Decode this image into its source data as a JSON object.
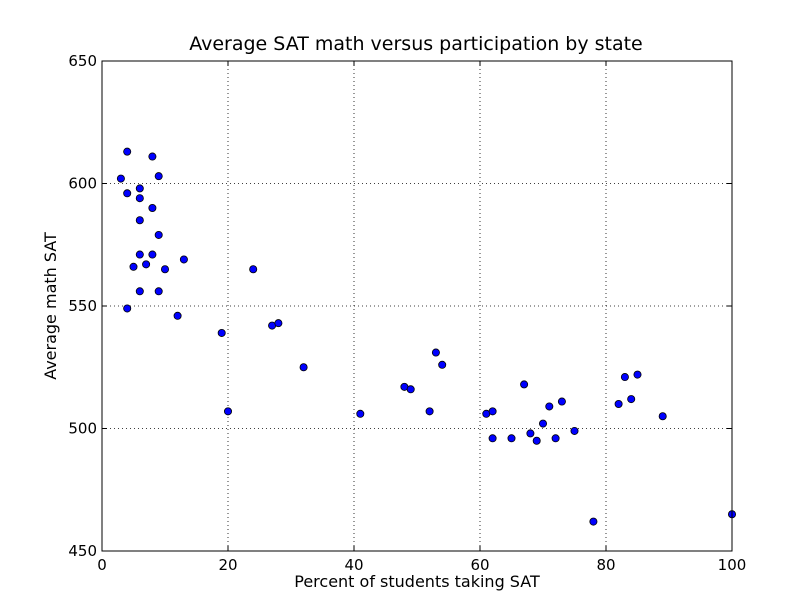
{
  "chart_data": {
    "type": "scatter",
    "title": "Average SAT math versus participation by state",
    "xlabel": "Percent of students taking SAT",
    "ylabel": "Average math SAT",
    "xlim": [
      0,
      100
    ],
    "ylim": [
      450,
      650
    ],
    "xticks": [
      0,
      20,
      40,
      60,
      80,
      100
    ],
    "yticks": [
      450,
      500,
      550,
      600,
      650
    ],
    "grid": true,
    "marker_color": "#0000ff",
    "series": [
      {
        "points": [
          {
            "x": 3,
            "y": 602
          },
          {
            "x": 4,
            "y": 613
          },
          {
            "x": 4,
            "y": 596
          },
          {
            "x": 4,
            "y": 549
          },
          {
            "x": 5,
            "y": 566
          },
          {
            "x": 6,
            "y": 598
          },
          {
            "x": 6,
            "y": 594
          },
          {
            "x": 6,
            "y": 585
          },
          {
            "x": 6,
            "y": 571
          },
          {
            "x": 6,
            "y": 556
          },
          {
            "x": 7,
            "y": 567
          },
          {
            "x": 8,
            "y": 611
          },
          {
            "x": 8,
            "y": 590
          },
          {
            "x": 8,
            "y": 571
          },
          {
            "x": 9,
            "y": 603
          },
          {
            "x": 9,
            "y": 579
          },
          {
            "x": 9,
            "y": 556
          },
          {
            "x": 10,
            "y": 565
          },
          {
            "x": 12,
            "y": 546
          },
          {
            "x": 13,
            "y": 569
          },
          {
            "x": 19,
            "y": 539
          },
          {
            "x": 20,
            "y": 507
          },
          {
            "x": 24,
            "y": 565
          },
          {
            "x": 27,
            "y": 542
          },
          {
            "x": 28,
            "y": 543
          },
          {
            "x": 32,
            "y": 525
          },
          {
            "x": 41,
            "y": 506
          },
          {
            "x": 48,
            "y": 517
          },
          {
            "x": 49,
            "y": 516
          },
          {
            "x": 52,
            "y": 507
          },
          {
            "x": 53,
            "y": 531
          },
          {
            "x": 54,
            "y": 526
          },
          {
            "x": 61,
            "y": 506
          },
          {
            "x": 62,
            "y": 507
          },
          {
            "x": 62,
            "y": 496
          },
          {
            "x": 65,
            "y": 496
          },
          {
            "x": 67,
            "y": 518
          },
          {
            "x": 68,
            "y": 498
          },
          {
            "x": 69,
            "y": 495
          },
          {
            "x": 70,
            "y": 502
          },
          {
            "x": 71,
            "y": 509
          },
          {
            "x": 72,
            "y": 496
          },
          {
            "x": 73,
            "y": 511
          },
          {
            "x": 75,
            "y": 499
          },
          {
            "x": 78,
            "y": 462
          },
          {
            "x": 82,
            "y": 510
          },
          {
            "x": 83,
            "y": 521
          },
          {
            "x": 84,
            "y": 512
          },
          {
            "x": 85,
            "y": 522
          },
          {
            "x": 89,
            "y": 505
          },
          {
            "x": 100,
            "y": 465
          }
        ]
      }
    ]
  }
}
